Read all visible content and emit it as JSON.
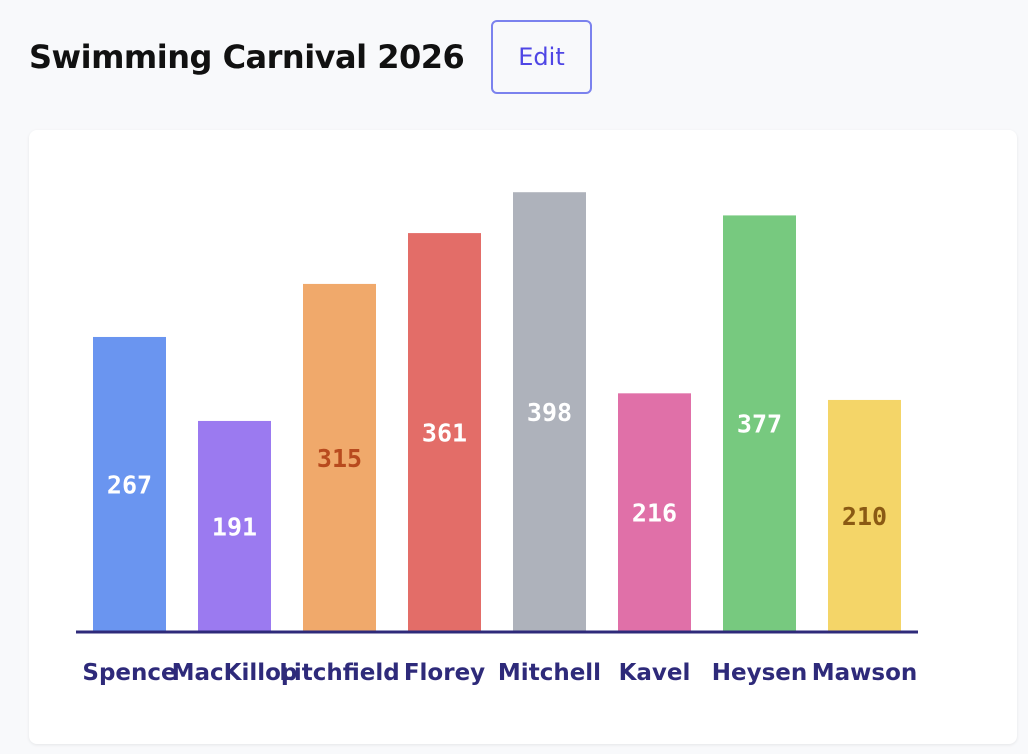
{
  "header": {
    "title": "Swimming Carnival 2026",
    "edit_label": "Edit"
  },
  "chart_data": {
    "type": "bar",
    "categories": [
      "Spence",
      "MacKillop",
      "Litchfield",
      "Florey",
      "Mitchell",
      "Kavel",
      "Heysen",
      "Mawson"
    ],
    "values": [
      267,
      191,
      315,
      361,
      398,
      216,
      377,
      210
    ],
    "colors": [
      "#6a95f0",
      "#9b7af0",
      "#f0a96b",
      "#e36d68",
      "#aeb2bb",
      "#e070a8",
      "#77c97f",
      "#f4d568"
    ],
    "label_colors": [
      "#ffffff",
      "#ffffff",
      "#b84a1e",
      "#ffffff",
      "#ffffff",
      "#ffffff",
      "#ffffff",
      "#8a5a14"
    ],
    "axis_color": "#2e2a7a",
    "ylim": [
      0,
      400
    ],
    "grid": false,
    "title": "",
    "xlabel": "",
    "ylabel": ""
  }
}
